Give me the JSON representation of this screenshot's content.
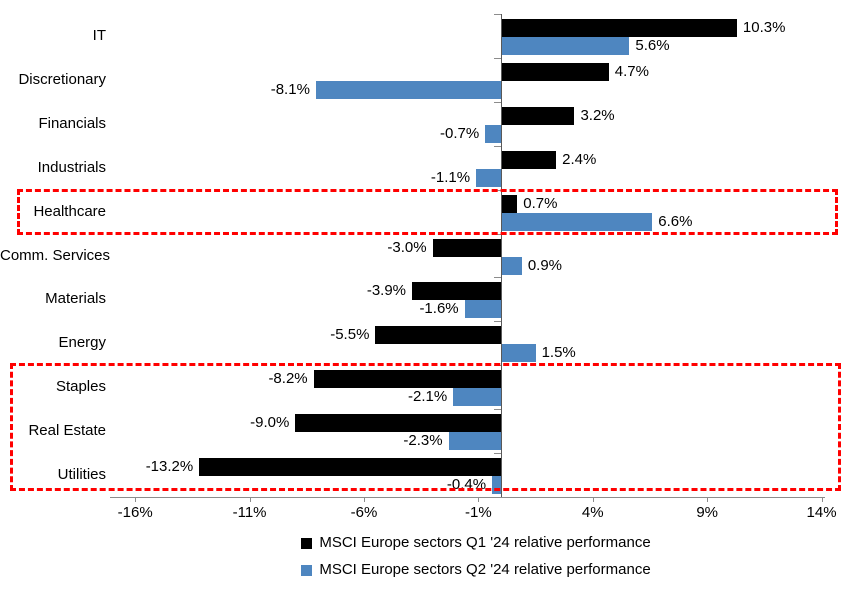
{
  "chart_data": {
    "type": "bar",
    "orientation": "horizontal",
    "title": "",
    "xlabel": "",
    "ylabel": "",
    "categories": [
      "IT",
      "Discretionary",
      "Financials",
      "Industrials",
      "Healthcare",
      "Comm. Services",
      "Materials",
      "Energy",
      "Staples",
      "Real Estate",
      "Utilities"
    ],
    "series": [
      {
        "name": "MSCI Europe sectors Q1 '24 relative performance",
        "color": "#000000",
        "values": [
          10.3,
          4.7,
          3.2,
          2.4,
          0.7,
          -3.0,
          -3.9,
          -5.5,
          -8.2,
          -9.0,
          -13.2
        ],
        "labels": [
          "10.3%",
          "4.7%",
          "3.2%",
          "2.4%",
          "0.7%",
          "-3.0%",
          "-3.9%",
          "-5.5%",
          "-8.2%",
          "-9.0%",
          "-13.2%"
        ]
      },
      {
        "name": "MSCI Europe sectors Q2 '24 relative performance",
        "color": "#4E86C0",
        "values": [
          5.6,
          -8.1,
          -0.7,
          -1.1,
          6.6,
          0.9,
          -1.6,
          1.5,
          -2.1,
          -2.3,
          -0.4
        ],
        "labels": [
          "5.6%",
          "-8.1%",
          "-0.7%",
          "-1.1%",
          "6.6%",
          "0.9%",
          "-1.6%",
          "1.5%",
          "-2.1%",
          "-2.3%",
          "-0.4%"
        ]
      }
    ],
    "x_ticks": [
      {
        "value": -16,
        "label": "-16%"
      },
      {
        "value": -11,
        "label": "-11%"
      },
      {
        "value": -6,
        "label": "-6%"
      },
      {
        "value": -1,
        "label": "-1%"
      },
      {
        "value": 4,
        "label": "4%"
      },
      {
        "value": 9,
        "label": "9%"
      },
      {
        "value": 14,
        "label": "14%"
      }
    ],
    "xlim": [
      -17.1,
      14.15
    ],
    "grid": false,
    "legend_position": "bottom",
    "annotations": {
      "highlight_color": "#FF0000",
      "highlight_boxes": [
        {
          "name": "highlight-box-healthcare",
          "from": "Healthcare",
          "to": "Healthcare"
        },
        {
          "name": "highlight-box-defensives",
          "from": "Staples",
          "to": "Utilities"
        }
      ]
    }
  }
}
